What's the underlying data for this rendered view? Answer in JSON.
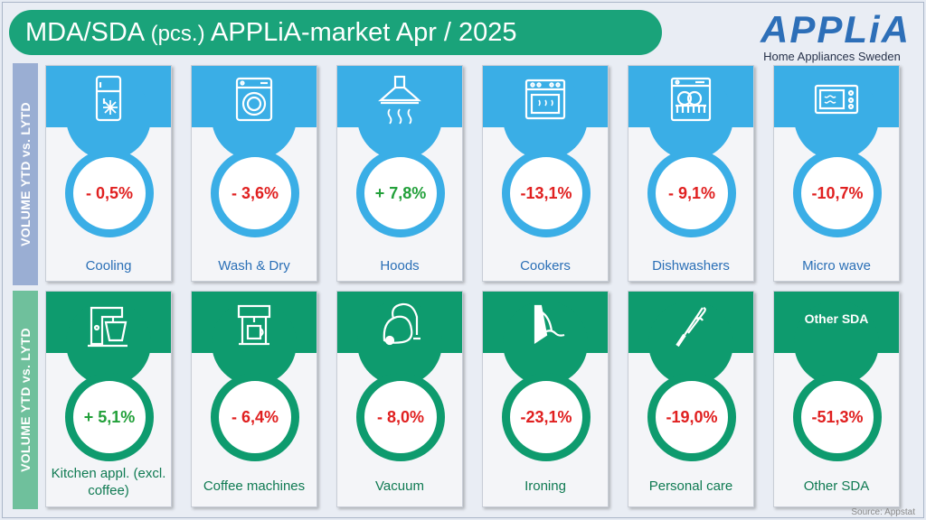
{
  "title_main": "MDA/SDA ",
  "title_small": "(pcs.)",
  "title_rest": " APPLiA-market Apr / 2025",
  "logo": {
    "brand": "APPLiA",
    "sub": "Home Appliances Sweden"
  },
  "side_labels": {
    "top": "VOLUME YTD vs. LYTD",
    "bottom": "VOLUME YTD vs. LYTD"
  },
  "colors": {
    "mda": "#3aaee6",
    "sda": "#0e9b6e",
    "negative": "#e02020",
    "positive": "#22a03a"
  },
  "mda": [
    {
      "label": "Cooling",
      "value": "- 0,5%",
      "icon": "fridge-icon",
      "sign": "neg"
    },
    {
      "label": "Wash & Dry",
      "value": "- 3,6%",
      "icon": "washing-machine-icon",
      "sign": "neg"
    },
    {
      "label": "Hoods",
      "value": "+ 7,8%",
      "icon": "hood-icon",
      "sign": "pos"
    },
    {
      "label": "Cookers",
      "value": "-13,1%",
      "icon": "oven-icon",
      "sign": "neg"
    },
    {
      "label": "Dishwashers",
      "value": "- 9,1%",
      "icon": "dishwasher-icon",
      "sign": "neg"
    },
    {
      "label": "Micro wave",
      "value": "-10,7%",
      "icon": "microwave-icon",
      "sign": "neg"
    }
  ],
  "sda": [
    {
      "label": "Kitchen appl. (excl. coffee)",
      "value": "+ 5,1%",
      "icon": "mixer-icon",
      "sign": "pos"
    },
    {
      "label": "Coffee machines",
      "value": "- 6,4%",
      "icon": "coffee-machine-icon",
      "sign": "neg"
    },
    {
      "label": "Vacuum",
      "value": "- 8,0%",
      "icon": "vacuum-icon",
      "sign": "neg"
    },
    {
      "label": "Ironing",
      "value": "-23,1%",
      "icon": "iron-icon",
      "sign": "neg"
    },
    {
      "label": "Personal care",
      "value": "-19,0%",
      "icon": "curling-iron-icon",
      "sign": "neg"
    },
    {
      "label": "Other SDA",
      "value": "-51,3%",
      "icon": "",
      "sign": "neg",
      "head_text": "Other SDA"
    }
  ],
  "source": "Source: Appstat"
}
